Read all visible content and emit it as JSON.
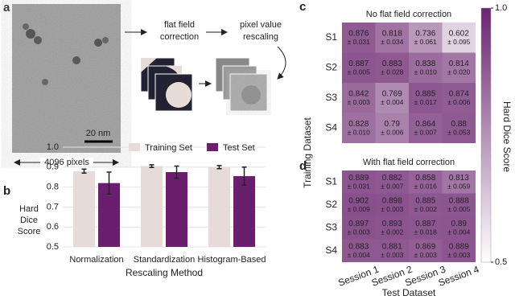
{
  "panel_labels": [
    "a",
    "b",
    "c",
    "d"
  ],
  "panel_a": {
    "step_1": [
      "flat field",
      "correction"
    ],
    "step_2": [
      "pixel value",
      "rescaling"
    ],
    "scale_bar": "20 nm",
    "width_label": "4096 pixels"
  },
  "chart_data": [
    {
      "type": "bar",
      "ylabel": [
        "Hard",
        "Dice",
        "Score"
      ],
      "xlabel": "Rescaling Method",
      "categories": [
        "Normalization",
        "Standardization",
        "Histogram-Based"
      ],
      "series": [
        {
          "name": "Training Set",
          "color": "#e6dbd8",
          "values": [
            0.88,
            0.905,
            0.9
          ],
          "errors": [
            0.01,
            0.007,
            0.008
          ]
        },
        {
          "name": "Test Set",
          "color": "#6a1f6e",
          "values": [
            0.82,
            0.875,
            0.855
          ],
          "errors": [
            0.055,
            0.03,
            0.045
          ]
        }
      ],
      "ylim": [
        0.5,
        1.0
      ],
      "yticks": [
        0.5,
        0.6,
        0.7,
        0.8,
        0.9,
        {
          "value": 1.0,
          "label": "1.0"
        }
      ]
    },
    {
      "type": "heatmap",
      "title": "No flat field correction",
      "ylabel": "Training Dataset",
      "xlabel": "Test Dataset",
      "categories": [
        "Session 1",
        "Session 2",
        "Session 3",
        "Session 4"
      ],
      "rows": [
        "S1",
        "S2",
        "S3",
        "S4"
      ],
      "values": [
        [
          0.876,
          0.818,
          0.736,
          0.602
        ],
        [
          0.887,
          0.883,
          0.838,
          0.814
        ],
        [
          0.842,
          0.769,
          0.885,
          0.874
        ],
        [
          0.828,
          0.79,
          0.864,
          0.88
        ]
      ],
      "error_labels": [
        [
          "± 0.031",
          "± 0.034",
          "± 0.061",
          "± 0.095"
        ],
        [
          "± 0.005",
          "± 0.028",
          "± 0.010",
          "± 0.020"
        ],
        [
          "± 0.003",
          "± 0.004",
          "± 0.017",
          "± 0.006"
        ],
        [
          "± 0.010",
          "± 0.006",
          "± 0.007",
          "± 0.053"
        ]
      ],
      "colorbar_label": "Hard Dice Score",
      "clim": [
        0.5,
        1.0
      ],
      "cticks": [
        0.5,
        {
          "value": 1.0,
          "label": "1.0"
        }
      ],
      "cmap": [
        "#ffffff",
        "#6b2570"
      ]
    },
    {
      "type": "heatmap",
      "title": "With flat field correction",
      "categories": [
        "Session 1",
        "Session 2",
        "Session 3",
        "Session 4"
      ],
      "rows": [
        "S1",
        "S2",
        "S3",
        "S4"
      ],
      "values": [
        [
          0.889,
          0.882,
          0.858,
          0.813
        ],
        [
          0.902,
          0.898,
          0.885,
          0.888
        ],
        [
          0.897,
          0.893,
          0.887,
          0.89
        ],
        [
          0.883,
          0.881,
          0.869,
          0.889
        ]
      ],
      "error_labels": [
        [
          "± 0.031",
          "± 0.007",
          "± 0.016",
          "± 0.059"
        ],
        [
          "± 0.009",
          "± 0.003",
          "± 0.002",
          "± 0.005"
        ],
        [
          "± 0.003",
          "± 0.002",
          "± 0.018",
          "± 0.004"
        ],
        [
          "± 0.004",
          "± 0.003",
          "± 0.003",
          "± 0.003"
        ]
      ]
    }
  ]
}
